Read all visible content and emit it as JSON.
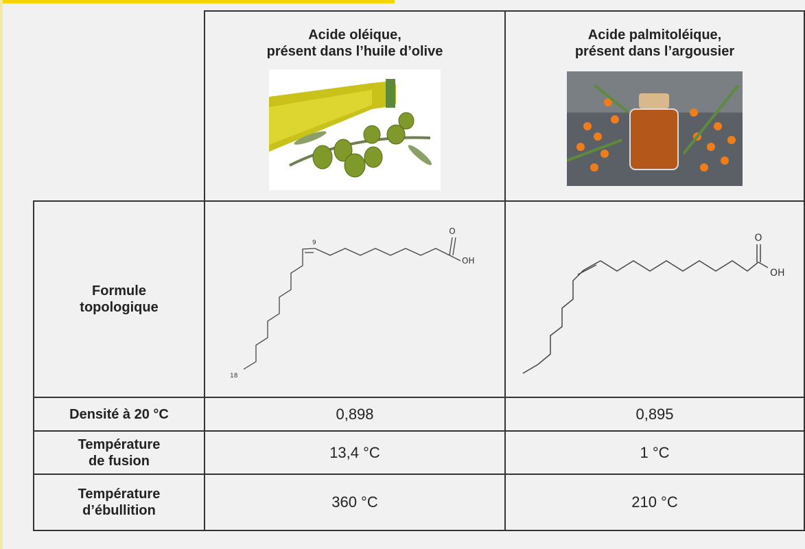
{
  "table": {
    "columns": [
      {
        "title": [
          "Acide oléique,",
          "présent dans l’huile d’olive"
        ]
      },
      {
        "title": [
          "Acide palmitoléique,",
          "présent dans l’argousier"
        ]
      }
    ],
    "formula_label": [
      "Formule",
      "topologique"
    ],
    "molecules": [
      {
        "o": "O",
        "oh": "OH",
        "c9": "9",
        "c18": "18"
      },
      {
        "o": "O",
        "oh": "OH"
      }
    ],
    "rows": [
      {
        "label": [
          "Densité à 20 °C"
        ],
        "values": [
          "0,898",
          "0,895"
        ]
      },
      {
        "label": [
          "Température",
          "de fusion"
        ],
        "values": [
          "13,4 °C",
          "1 °C"
        ]
      },
      {
        "label": [
          "Température",
          "d’ébullition"
        ],
        "values": [
          "360 °C",
          "210 °C"
        ]
      }
    ]
  }
}
